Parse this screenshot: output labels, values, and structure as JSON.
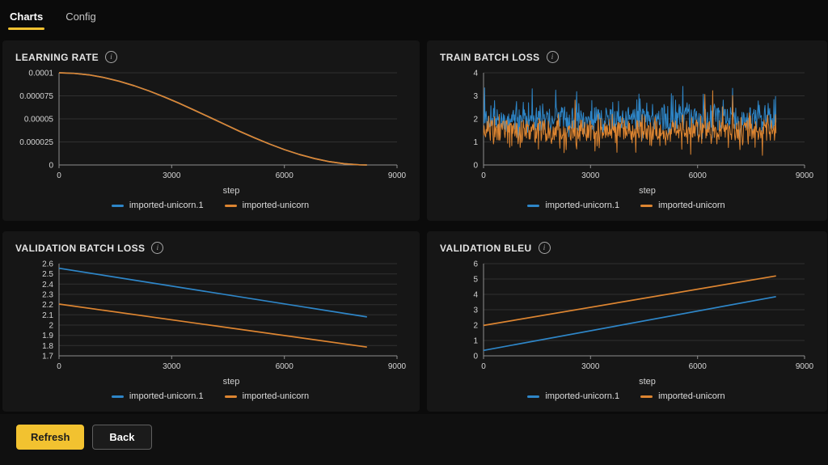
{
  "tabs": [
    {
      "label": "Charts",
      "active": true
    },
    {
      "label": "Config",
      "active": false
    }
  ],
  "footer": {
    "refresh_label": "Refresh",
    "back_label": "Back"
  },
  "colors": {
    "accent": "#f2c230",
    "series_blue": "#2e86c8",
    "series_orange": "#dd8531",
    "grid_line": "#303030",
    "axis_line": "#8f8f8f",
    "tick_text": "#d4d4d4"
  },
  "chart_data": [
    {
      "id": "learning-rate",
      "title": "LEARNING RATE",
      "type": "line",
      "xlabel": "step",
      "xlim": [
        0,
        9000
      ],
      "x_ticks": [
        0,
        3000,
        6000,
        9000
      ],
      "ylim": [
        0,
        0.0001
      ],
      "y_ticks": [
        0,
        2.5e-05,
        5e-05,
        7.5e-05,
        0.0001
      ],
      "y_tick_labels": [
        "0",
        "0.000025",
        "0.00005",
        "0.000075",
        "0.0001"
      ],
      "grid": true,
      "legend_position": "bottom",
      "series": [
        {
          "name": "imported-unicorn.1",
          "color": "blue",
          "points": [
            [
              0,
              0.0001
            ],
            [
              400,
              9.94e-05
            ],
            [
              800,
              9.77e-05
            ],
            [
              1200,
              9.48e-05
            ],
            [
              1600,
              9.09e-05
            ],
            [
              2000,
              8.6e-05
            ],
            [
              2400,
              8.03e-05
            ],
            [
              2800,
              7.39e-05
            ],
            [
              3200,
              6.69e-05
            ],
            [
              3600,
              5.95e-05
            ],
            [
              4000,
              5.19e-05
            ],
            [
              4400,
              4.43e-05
            ],
            [
              4800,
              3.67e-05
            ],
            [
              5200,
              2.96e-05
            ],
            [
              5600,
              2.28e-05
            ],
            [
              6000,
              1.67e-05
            ],
            [
              6400,
              1.14e-05
            ],
            [
              6800,
              7e-06
            ],
            [
              7200,
              3.6e-06
            ],
            [
              7600,
              1.3e-06
            ],
            [
              8000,
              1.5e-07
            ],
            [
              8200,
              0
            ]
          ]
        },
        {
          "name": "imported-unicorn",
          "color": "orange",
          "points": [
            [
              0,
              0.0001
            ],
            [
              400,
              9.94e-05
            ],
            [
              800,
              9.77e-05
            ],
            [
              1200,
              9.48e-05
            ],
            [
              1600,
              9.09e-05
            ],
            [
              2000,
              8.6e-05
            ],
            [
              2400,
              8.03e-05
            ],
            [
              2800,
              7.39e-05
            ],
            [
              3200,
              6.69e-05
            ],
            [
              3600,
              5.95e-05
            ],
            [
              4000,
              5.19e-05
            ],
            [
              4400,
              4.43e-05
            ],
            [
              4800,
              3.67e-05
            ],
            [
              5200,
              2.96e-05
            ],
            [
              5600,
              2.28e-05
            ],
            [
              6000,
              1.67e-05
            ],
            [
              6400,
              1.14e-05
            ],
            [
              6800,
              7e-06
            ],
            [
              7200,
              3.6e-06
            ],
            [
              7600,
              1.3e-06
            ],
            [
              8000,
              1.5e-07
            ],
            [
              8200,
              0
            ]
          ]
        }
      ]
    },
    {
      "id": "train-batch-loss",
      "title": "TRAIN BATCH LOSS",
      "type": "noisy-line",
      "xlabel": "step",
      "xlim": [
        0,
        9000
      ],
      "x_ticks": [
        0,
        3000,
        6000,
        9000
      ],
      "ylim": [
        0,
        4
      ],
      "y_ticks": [
        0,
        1,
        2,
        3,
        4
      ],
      "y_tick_labels": [
        "0",
        "1",
        "2",
        "3",
        "4"
      ],
      "grid": true,
      "legend_position": "bottom",
      "series": [
        {
          "name": "imported-unicorn.1",
          "color": "blue",
          "generator": {
            "seed": 12,
            "n": 560,
            "x_max": 8200,
            "base": 2.0,
            "jitter": 0.5,
            "spike_prob": 0.05,
            "spike_max": 3.45,
            "dip_prob": 0.0,
            "dip_min": 1.0,
            "min": 1.05
          }
        },
        {
          "name": "imported-unicorn",
          "color": "orange",
          "generator": {
            "seed": 99,
            "n": 560,
            "x_max": 8200,
            "base": 1.5,
            "jitter": 0.45,
            "spike_prob": 0.02,
            "spike_max": 3.4,
            "dip_prob": 0.05,
            "dip_min": 0.4,
            "min": 0.4
          }
        }
      ]
    },
    {
      "id": "validation-batch-loss",
      "title": "VALIDATION BATCH LOSS",
      "type": "line",
      "xlabel": "step",
      "xlim": [
        0,
        9000
      ],
      "x_ticks": [
        0,
        3000,
        6000,
        9000
      ],
      "ylim": [
        1.7,
        2.6
      ],
      "y_ticks": [
        1.7,
        1.8,
        1.9,
        2,
        2.1,
        2.2,
        2.3,
        2.4,
        2.5,
        2.6
      ],
      "y_tick_labels": [
        "1.7",
        "1.8",
        "1.9",
        "2",
        "2.1",
        "2.2",
        "2.3",
        "2.4",
        "2.5",
        "2.6"
      ],
      "grid": true,
      "legend_position": "bottom",
      "series": [
        {
          "name": "imported-unicorn.1",
          "color": "blue",
          "points": [
            [
              0,
              2.555
            ],
            [
              8200,
              2.08
            ]
          ]
        },
        {
          "name": "imported-unicorn",
          "color": "orange",
          "points": [
            [
              0,
              2.205
            ],
            [
              8200,
              1.785
            ]
          ]
        }
      ]
    },
    {
      "id": "validation-bleu",
      "title": "VALIDATION BLEU",
      "type": "line",
      "xlabel": "step",
      "xlim": [
        0,
        9000
      ],
      "x_ticks": [
        0,
        3000,
        6000,
        9000
      ],
      "ylim": [
        0,
        6
      ],
      "y_ticks": [
        0,
        1,
        2,
        3,
        4,
        5,
        6
      ],
      "y_tick_labels": [
        "0",
        "1",
        "2",
        "3",
        "4",
        "5",
        "6"
      ],
      "grid": true,
      "legend_position": "bottom",
      "series": [
        {
          "name": "imported-unicorn.1",
          "color": "blue",
          "points": [
            [
              0,
              0.35
            ],
            [
              8200,
              3.85
            ]
          ]
        },
        {
          "name": "imported-unicorn",
          "color": "orange",
          "points": [
            [
              0,
              1.98
            ],
            [
              8200,
              5.2
            ]
          ]
        }
      ]
    }
  ]
}
